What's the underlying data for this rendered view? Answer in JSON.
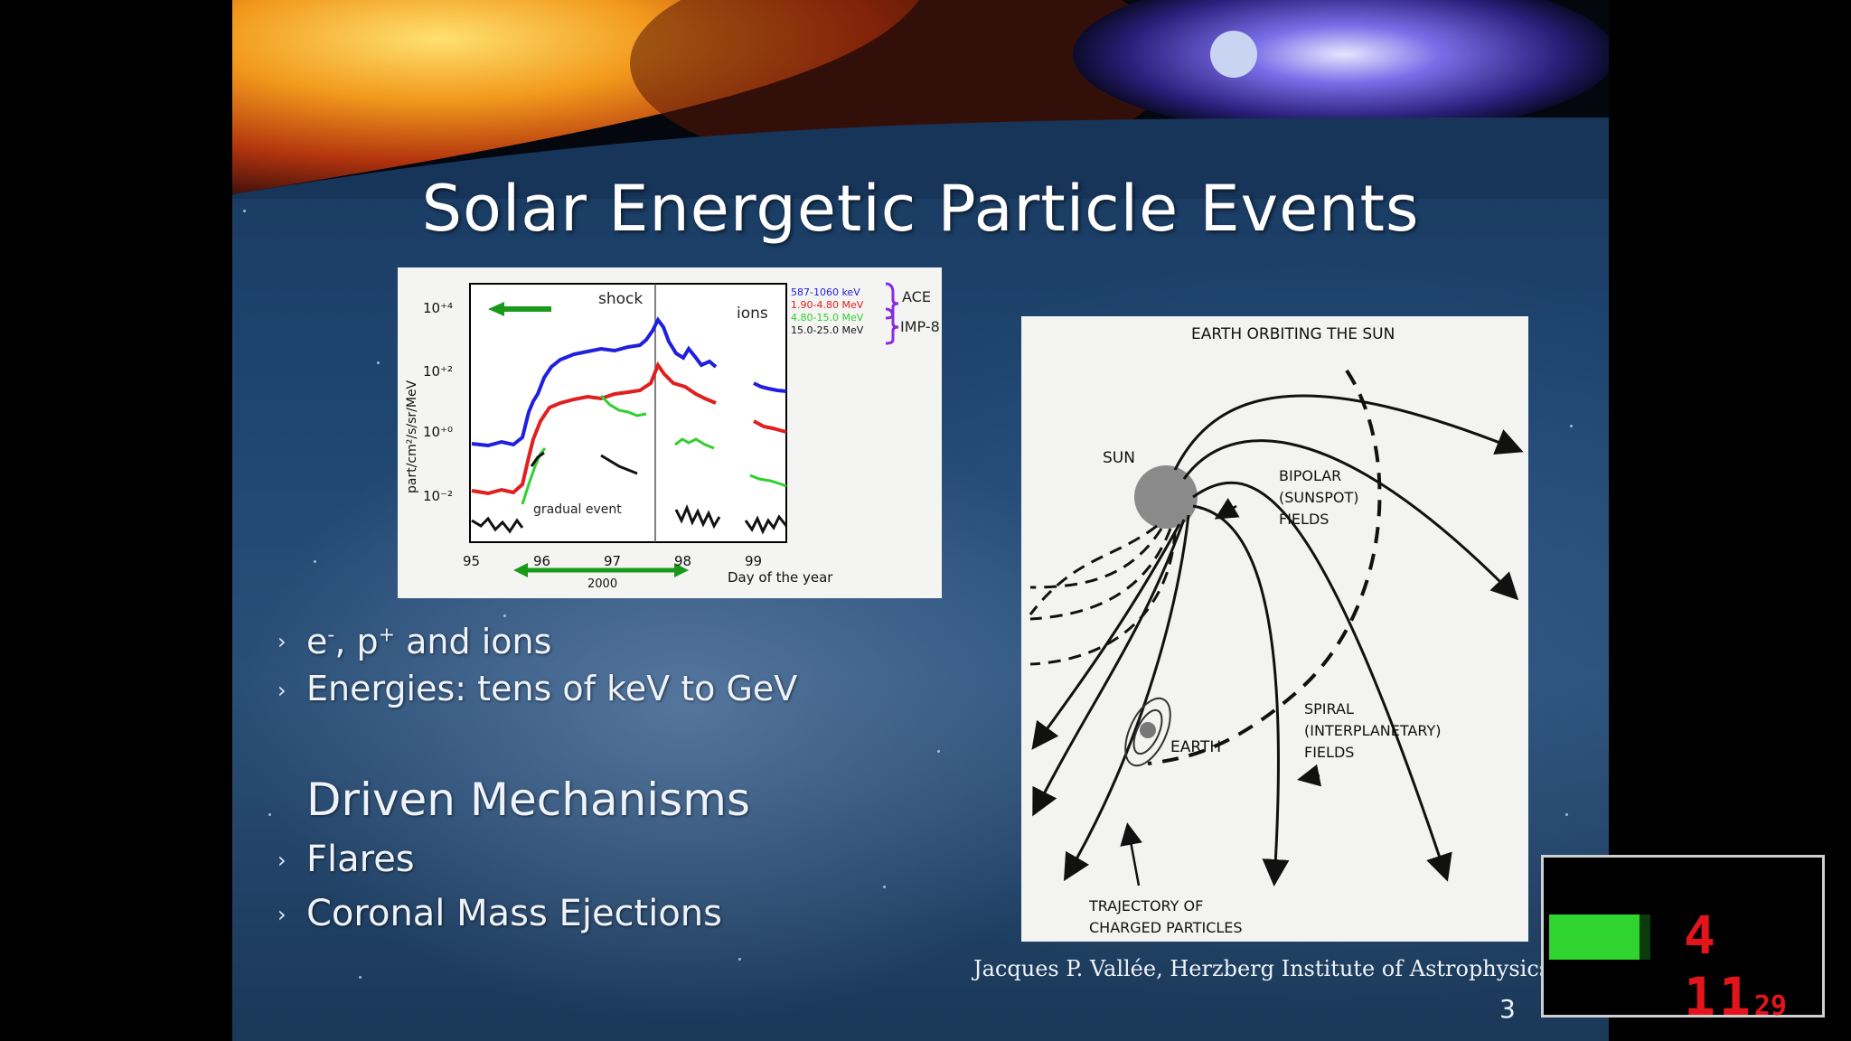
{
  "slide": {
    "title": "Solar Energetic Particle Events",
    "bullets_top": [
      {
        "pre": "e",
        "sup1": "-",
        "mid": ", p",
        "sup2": "+",
        "post": " and ions"
      },
      {
        "text": "Energies: tens of keV to GeV"
      }
    ],
    "subheading": "Driven Mechanisms",
    "bullets_bottom": [
      "Flares",
      "Coronal Mass Ejections"
    ],
    "credit": "Jacques P. Vallée, Herzberg Institute of Astrophysics.",
    "number": "3",
    "bullet_glyph": "›"
  },
  "plot": {
    "ylabel": "part/cm²/s/sr/MeV",
    "yticks": [
      "10⁺⁴",
      "10⁺²",
      "10⁺⁰",
      "10⁻²"
    ],
    "xticks": [
      "95",
      "96",
      "97",
      "98",
      "99"
    ],
    "xlabel": "Day of the year",
    "year": "2000",
    "shock_label": "shock",
    "ions_label": "ions",
    "gradual_label": "gradual event",
    "legend": [
      "587-1060 keV",
      "1.90-4.80 MeV",
      "4.80-15.0 MeV",
      "15.0-25.0 MeV"
    ],
    "legend_colors": [
      "#1f1fe0",
      "#e01f1f",
      "#2fd02f",
      "#111111"
    ],
    "instruments": [
      "ACE",
      "IMP-8"
    ]
  },
  "diagram": {
    "title": "EARTH ORBITING THE SUN",
    "sun": "SUN",
    "bipolar": [
      "BIPOLAR",
      "(SUNSPOT)",
      "FIELDS"
    ],
    "earth": "EARTH",
    "spiral": [
      "SPIRAL",
      "(INTERPLANETARY)",
      "FIELDS"
    ],
    "trajectory": [
      "TRAJECTORY OF",
      "CHARGED PARTICLES"
    ]
  },
  "overlay": {
    "timer_main": "4 11",
    "timer_small": "29",
    "accent": "#e3141b",
    "level_color": "#2fd42f"
  }
}
